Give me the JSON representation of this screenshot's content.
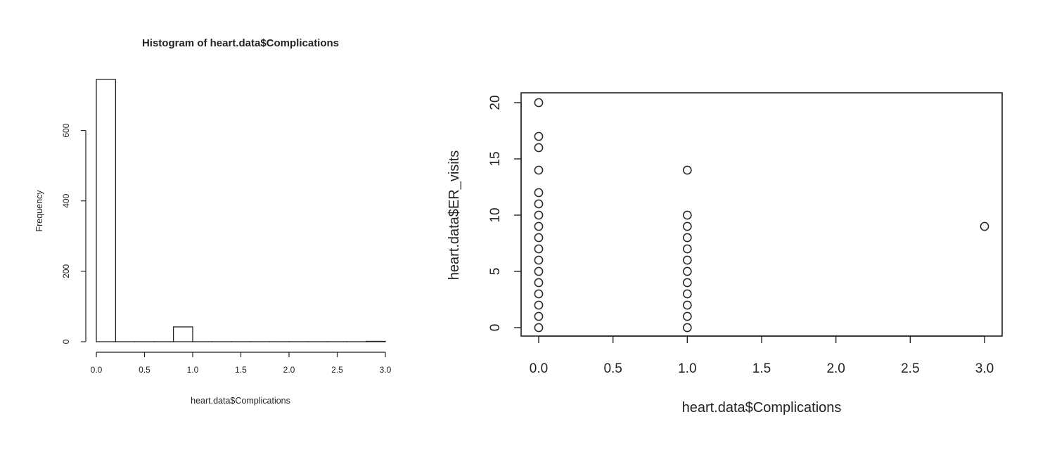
{
  "chart_data": [
    {
      "type": "bar",
      "title": "Histogram of heart.data$Complications",
      "xlabel": "heart.data$Complications",
      "ylabel": "Frequency",
      "bins": [
        {
          "x0": 0.0,
          "x1": 0.2,
          "count": 745
        },
        {
          "x0": 0.2,
          "x1": 0.4,
          "count": 0
        },
        {
          "x0": 0.4,
          "x1": 0.6,
          "count": 0
        },
        {
          "x0": 0.6,
          "x1": 0.8,
          "count": 0
        },
        {
          "x0": 0.8,
          "x1": 1.0,
          "count": 42
        },
        {
          "x0": 1.0,
          "x1": 1.2,
          "count": 0
        },
        {
          "x0": 1.2,
          "x1": 1.4,
          "count": 0
        },
        {
          "x0": 1.4,
          "x1": 1.6,
          "count": 0
        },
        {
          "x0": 1.6,
          "x1": 1.8,
          "count": 0
        },
        {
          "x0": 1.8,
          "x1": 2.0,
          "count": 0
        },
        {
          "x0": 2.0,
          "x1": 2.2,
          "count": 0
        },
        {
          "x0": 2.2,
          "x1": 2.4,
          "count": 0
        },
        {
          "x0": 2.4,
          "x1": 2.6,
          "count": 0
        },
        {
          "x0": 2.6,
          "x1": 2.8,
          "count": 0
        },
        {
          "x0": 2.8,
          "x1": 3.0,
          "count": 1
        }
      ],
      "xticks": [
        "0.0",
        "0.5",
        "1.0",
        "1.5",
        "2.0",
        "2.5",
        "3.0"
      ],
      "yticks": [
        "0",
        "200",
        "400",
        "600"
      ],
      "xlim": [
        0,
        3
      ],
      "ylim": [
        0,
        745
      ],
      "grid": false
    },
    {
      "type": "scatter",
      "xlabel": "heart.data$Complications",
      "ylabel": "heart.data$ER_visits",
      "points": [
        {
          "x": 0,
          "y": 0
        },
        {
          "x": 0,
          "y": 1
        },
        {
          "x": 0,
          "y": 2
        },
        {
          "x": 0,
          "y": 3
        },
        {
          "x": 0,
          "y": 4
        },
        {
          "x": 0,
          "y": 5
        },
        {
          "x": 0,
          "y": 6
        },
        {
          "x": 0,
          "y": 7
        },
        {
          "x": 0,
          "y": 8
        },
        {
          "x": 0,
          "y": 9
        },
        {
          "x": 0,
          "y": 10
        },
        {
          "x": 0,
          "y": 11
        },
        {
          "x": 0,
          "y": 12
        },
        {
          "x": 0,
          "y": 14
        },
        {
          "x": 0,
          "y": 16
        },
        {
          "x": 0,
          "y": 17
        },
        {
          "x": 0,
          "y": 20
        },
        {
          "x": 1,
          "y": 0
        },
        {
          "x": 1,
          "y": 1
        },
        {
          "x": 1,
          "y": 2
        },
        {
          "x": 1,
          "y": 3
        },
        {
          "x": 1,
          "y": 4
        },
        {
          "x": 1,
          "y": 5
        },
        {
          "x": 1,
          "y": 6
        },
        {
          "x": 1,
          "y": 7
        },
        {
          "x": 1,
          "y": 8
        },
        {
          "x": 1,
          "y": 9
        },
        {
          "x": 1,
          "y": 10
        },
        {
          "x": 1,
          "y": 14
        },
        {
          "x": 3,
          "y": 9
        }
      ],
      "xticks": [
        "0.0",
        "0.5",
        "1.0",
        "1.5",
        "2.0",
        "2.5",
        "3.0"
      ],
      "yticks": [
        "0",
        "5",
        "10",
        "15",
        "20"
      ],
      "xlim": [
        0,
        3
      ],
      "ylim": [
        0,
        20
      ],
      "grid": false
    }
  ]
}
